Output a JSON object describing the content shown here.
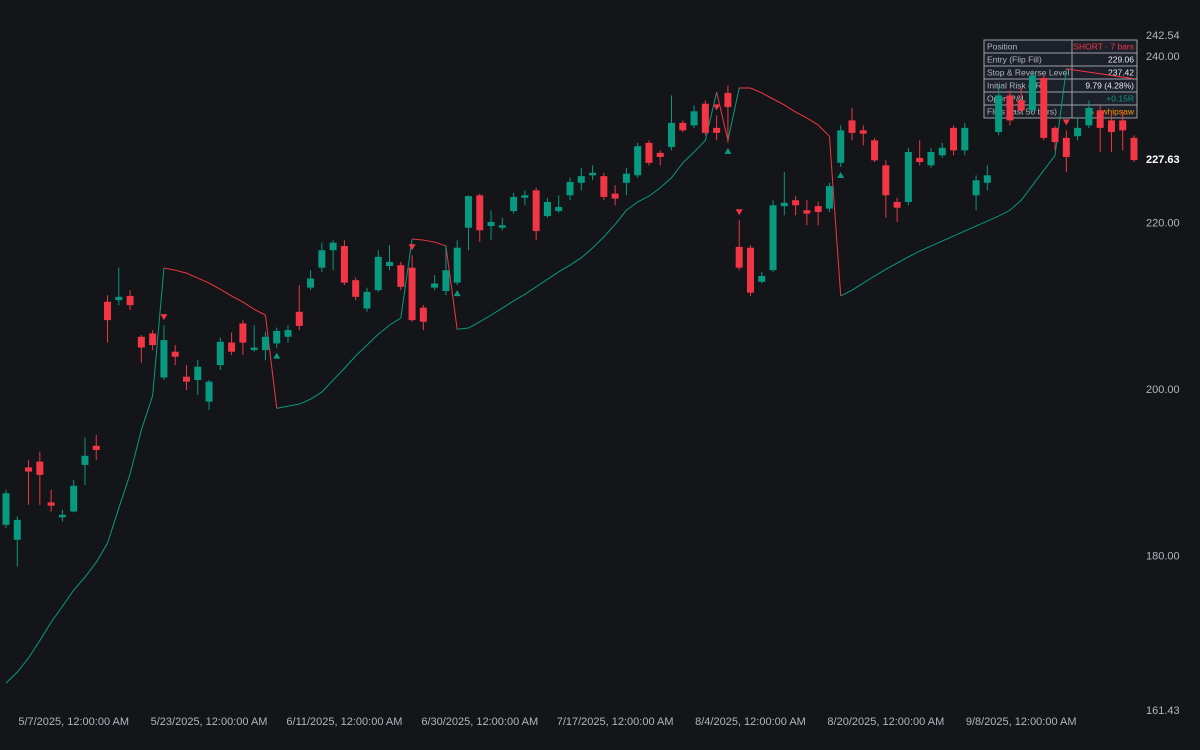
{
  "chart_data": {
    "type": "candlestick",
    "categories": [
      null,
      null,
      null,
      null,
      null,
      null,
      "5/7/2025, 12:00:00 AM",
      null,
      null,
      null,
      null,
      null,
      null,
      null,
      null,
      null,
      null,
      null,
      "5/23/2025, 12:00:00 AM",
      null,
      null,
      null,
      null,
      null,
      null,
      null,
      null,
      null,
      null,
      null,
      "6/11/2025, 12:00:00 AM",
      null,
      null,
      null,
      null,
      null,
      null,
      null,
      null,
      null,
      null,
      null,
      "6/30/2025, 12:00:00 AM",
      null,
      null,
      null,
      null,
      null,
      null,
      null,
      null,
      null,
      null,
      null,
      "7/17/2025, 12:00:00 AM",
      null,
      null,
      null,
      null,
      null,
      null,
      null,
      null,
      null,
      null,
      null,
      "8/4/2025, 12:00:00 AM",
      null,
      null,
      null,
      null,
      null,
      null,
      null,
      null,
      null,
      null,
      null,
      "8/20/2025, 12:00:00 AM",
      null,
      null,
      null,
      null,
      null,
      null,
      null,
      null,
      null,
      null,
      null,
      "9/8/2025, 12:00:00 AM",
      null,
      null,
      null,
      null,
      null,
      null,
      null,
      null,
      null,
      null
    ],
    "open": [
      183.8,
      182.0,
      190.7,
      191.4,
      186.5,
      184.7,
      185.4,
      191.0,
      193.3,
      210.6,
      210.8,
      211.3,
      206.4,
      206.8,
      201.5,
      204.6,
      201.6,
      201.2,
      198.6,
      203.0,
      205.7,
      208.0,
      204.8,
      204.8,
      205.6,
      206.4,
      209.4,
      212.3,
      214.7,
      216.8,
      217.3,
      213.2,
      209.8,
      212.0,
      214.9,
      215.0,
      214.7,
      209.9,
      212.3,
      211.9,
      212.9,
      219.5,
      223.4,
      219.7,
      219.5,
      221.5,
      223.1,
      224.0,
      220.9,
      221.5,
      223.4,
      224.9,
      225.8,
      225.7,
      223.6,
      224.9,
      225.8,
      229.7,
      228.5,
      229.2,
      232.1,
      231.8,
      234.4,
      231.5,
      235.7,
      217.2,
      217.1,
      213.0,
      214.4,
      222.1,
      222.8,
      221.6,
      222.1,
      221.8,
      227.3,
      232.4,
      231.2,
      230.0,
      227.0,
      222.6,
      222.6,
      227.9,
      227.0,
      228.2,
      231.5,
      228.8,
      223.4,
      224.9,
      231.0,
      235.4,
      234.8,
      233.6,
      237.5,
      231.5,
      230.3,
      230.5,
      231.8,
      233.6,
      232.4,
      232.4,
      230.3
    ],
    "high": [
      188.0,
      184.8,
      191.6,
      192.6,
      188.0,
      185.6,
      189.2,
      194.3,
      194.6,
      211.4,
      214.7,
      212.0,
      206.6,
      207.2,
      207.8,
      205.4,
      203.0,
      203.6,
      201.2,
      206.3,
      206.9,
      208.4,
      207.8,
      207.0,
      207.5,
      207.8,
      212.6,
      214.4,
      217.7,
      218.0,
      218.0,
      213.5,
      212.3,
      216.8,
      217.4,
      215.4,
      216.2,
      210.2,
      213.8,
      217.4,
      218.0,
      223.4,
      223.6,
      221.6,
      220.7,
      223.7,
      224.0,
      224.3,
      223.1,
      223.4,
      225.5,
      226.7,
      227.0,
      226.1,
      224.6,
      226.7,
      229.7,
      230.0,
      228.8,
      235.4,
      232.4,
      234.2,
      234.8,
      233.0,
      236.6,
      220.4,
      217.4,
      214.2,
      222.8,
      226.2,
      223.3,
      222.8,
      222.6,
      224.9,
      231.8,
      233.9,
      231.8,
      230.3,
      227.6,
      223.1,
      229.1,
      230.0,
      229.1,
      229.7,
      231.8,
      232.1,
      225.8,
      227.0,
      236.6,
      236.0,
      236.3,
      238.4,
      237.8,
      231.7,
      231.2,
      232.7,
      234.8,
      234.2,
      233.4,
      233.6,
      230.6
    ],
    "low": [
      183.4,
      178.8,
      186.2,
      186.2,
      185.4,
      184.2,
      185.3,
      188.6,
      191.6,
      205.7,
      210.2,
      209.6,
      203.3,
      204.8,
      201.2,
      203.0,
      200.0,
      199.4,
      197.6,
      202.4,
      204.2,
      204.2,
      204.6,
      203.6,
      205.1,
      205.7,
      207.2,
      212.0,
      214.2,
      214.4,
      212.6,
      210.8,
      209.4,
      211.8,
      214.4,
      212.0,
      208.2,
      207.2,
      212.0,
      211.4,
      212.6,
      216.8,
      217.8,
      218.0,
      219.2,
      221.2,
      222.2,
      218.0,
      220.7,
      221.3,
      222.8,
      224.0,
      225.2,
      222.8,
      222.2,
      223.4,
      225.5,
      227.0,
      227.0,
      228.8,
      231.0,
      231.5,
      230.6,
      230.0,
      229.7,
      214.4,
      211.3,
      212.8,
      214.2,
      221.0,
      221.0,
      219.8,
      219.8,
      221.4,
      226.8,
      230.0,
      229.4,
      227.4,
      220.7,
      220.2,
      222.2,
      227.0,
      226.7,
      227.9,
      228.2,
      228.2,
      221.6,
      224.0,
      230.6,
      231.8,
      233.4,
      233.4,
      230.0,
      228.8,
      226.2,
      230.0,
      231.5,
      228.6,
      228.6,
      228.8,
      227.4
    ],
    "close": [
      187.6,
      184.4,
      190.2,
      189.8,
      186.1,
      185.0,
      188.5,
      192.1,
      192.8,
      208.4,
      211.2,
      210.2,
      205.1,
      205.4,
      206.0,
      204.0,
      201.0,
      202.8,
      201.0,
      205.8,
      204.6,
      205.7,
      205.1,
      206.4,
      207.1,
      207.2,
      207.7,
      213.4,
      216.8,
      217.7,
      212.9,
      211.2,
      211.8,
      216.0,
      215.4,
      212.4,
      208.4,
      208.2,
      212.8,
      214.4,
      217.1,
      223.3,
      219.2,
      220.2,
      219.8,
      223.2,
      223.4,
      219.1,
      222.6,
      222.0,
      225.0,
      225.7,
      226.1,
      223.2,
      223.0,
      226.0,
      229.3,
      227.3,
      228.0,
      232.1,
      231.2,
      233.5,
      230.9,
      230.9,
      234.0,
      214.7,
      211.7,
      213.7,
      222.2,
      222.5,
      222.2,
      221.2,
      221.4,
      224.5,
      231.2,
      230.9,
      230.8,
      227.6,
      223.4,
      221.9,
      228.6,
      227.4,
      228.6,
      229.1,
      228.8,
      231.5,
      225.2,
      225.8,
      235.4,
      232.4,
      233.6,
      237.8,
      230.3,
      229.8,
      228.0,
      231.5,
      233.9,
      231.5,
      231.0,
      231.2,
      227.63
    ],
    "up_color": "#089981",
    "down_color": "#f23645",
    "lines": [
      {
        "color": "#089981",
        "values": [
          164.78,
          166.1,
          167.8,
          169.9,
          172.1,
          174.0,
          175.95,
          177.5,
          179.3,
          181.6,
          185.8,
          189.9,
          195.2,
          199.3,
          null,
          null,
          null,
          null,
          null,
          null,
          null,
          null,
          null,
          null,
          197.8,
          198.07,
          198.3,
          198.9,
          199.75,
          201.2,
          202.6,
          204.1,
          205.4,
          206.7,
          207.8,
          208.65,
          null,
          null,
          null,
          null,
          207.3,
          207.45,
          208.2,
          209.0,
          209.85,
          210.7,
          211.5,
          212.4,
          213.3,
          214.2,
          215.0,
          215.9,
          217.06,
          218.4,
          219.9,
          221.6,
          222.6,
          223.3,
          224.3,
          225.5,
          227.3,
          228.6,
          230.0,
          null,
          230.0,
          null,
          null,
          null,
          null,
          null,
          null,
          null,
          null,
          null,
          211.3,
          212.0,
          212.85,
          213.7,
          214.5,
          215.26,
          216.0,
          216.7,
          217.3,
          217.9,
          218.5,
          219.1,
          219.7,
          220.3,
          220.9,
          221.6,
          222.8,
          224.6,
          226.4,
          228.2,
          null,
          null,
          null,
          null,
          null,
          null,
          null
        ]
      },
      {
        "color": "#f23645",
        "values": [
          null,
          null,
          null,
          null,
          null,
          null,
          null,
          null,
          null,
          null,
          null,
          null,
          null,
          null,
          214.66,
          214.4,
          214.05,
          213.45,
          212.85,
          212.1,
          211.3,
          210.57,
          209.7,
          209.0,
          null,
          null,
          null,
          null,
          null,
          null,
          null,
          null,
          null,
          null,
          null,
          null,
          218.14,
          218.02,
          217.78,
          217.3,
          null,
          null,
          null,
          null,
          null,
          null,
          null,
          null,
          null,
          null,
          null,
          null,
          null,
          null,
          null,
          null,
          null,
          null,
          null,
          null,
          null,
          null,
          null,
          235.8,
          null,
          236.29,
          236.29,
          235.7,
          234.97,
          234.25,
          233.4,
          232.7,
          231.84,
          230.5,
          null,
          null,
          null,
          null,
          null,
          null,
          null,
          null,
          null,
          null,
          null,
          null,
          null,
          null,
          null,
          null,
          null,
          null,
          null,
          null,
          238.6,
          238.4,
          238.2,
          238.0,
          237.8,
          237.6,
          237.42
        ]
      }
    ],
    "short_signals": [
      14,
      36,
      63,
      65,
      94
    ],
    "long_signals": [
      24,
      40,
      64,
      74
    ],
    "ylim": [
      161.43,
      242.54
    ],
    "yticks": [
      242.54,
      {
        "value": 240,
        "label": "240.00"
      },
      {
        "value": 220,
        "label": "220.00"
      },
      {
        "value": 200,
        "label": "200.00"
      },
      {
        "value": 180,
        "label": "180.00"
      },
      161.43
    ],
    "grid": false,
    "info_table": [
      {
        "label": "Position",
        "value": "SHORT · 7 bars",
        "color": "#f23645"
      },
      {
        "label": "Entry (Flip Fill)",
        "value": "229.06",
        "color": "#e6e8ee"
      },
      {
        "label": "Stop & Reverse Level",
        "value": "237.42",
        "color": "#e6e8ee"
      },
      {
        "label": "Initial Risk (1R)",
        "value": "9.79 (4.28%)",
        "color": "#e6e8ee"
      },
      {
        "label": "Open P&L",
        "value": "+0.15R",
        "color": "#089981"
      },
      {
        "label": "Flips (last 50 bars)",
        "value": "5 · whipsaw",
        "color": "#ff9800"
      }
    ]
  }
}
